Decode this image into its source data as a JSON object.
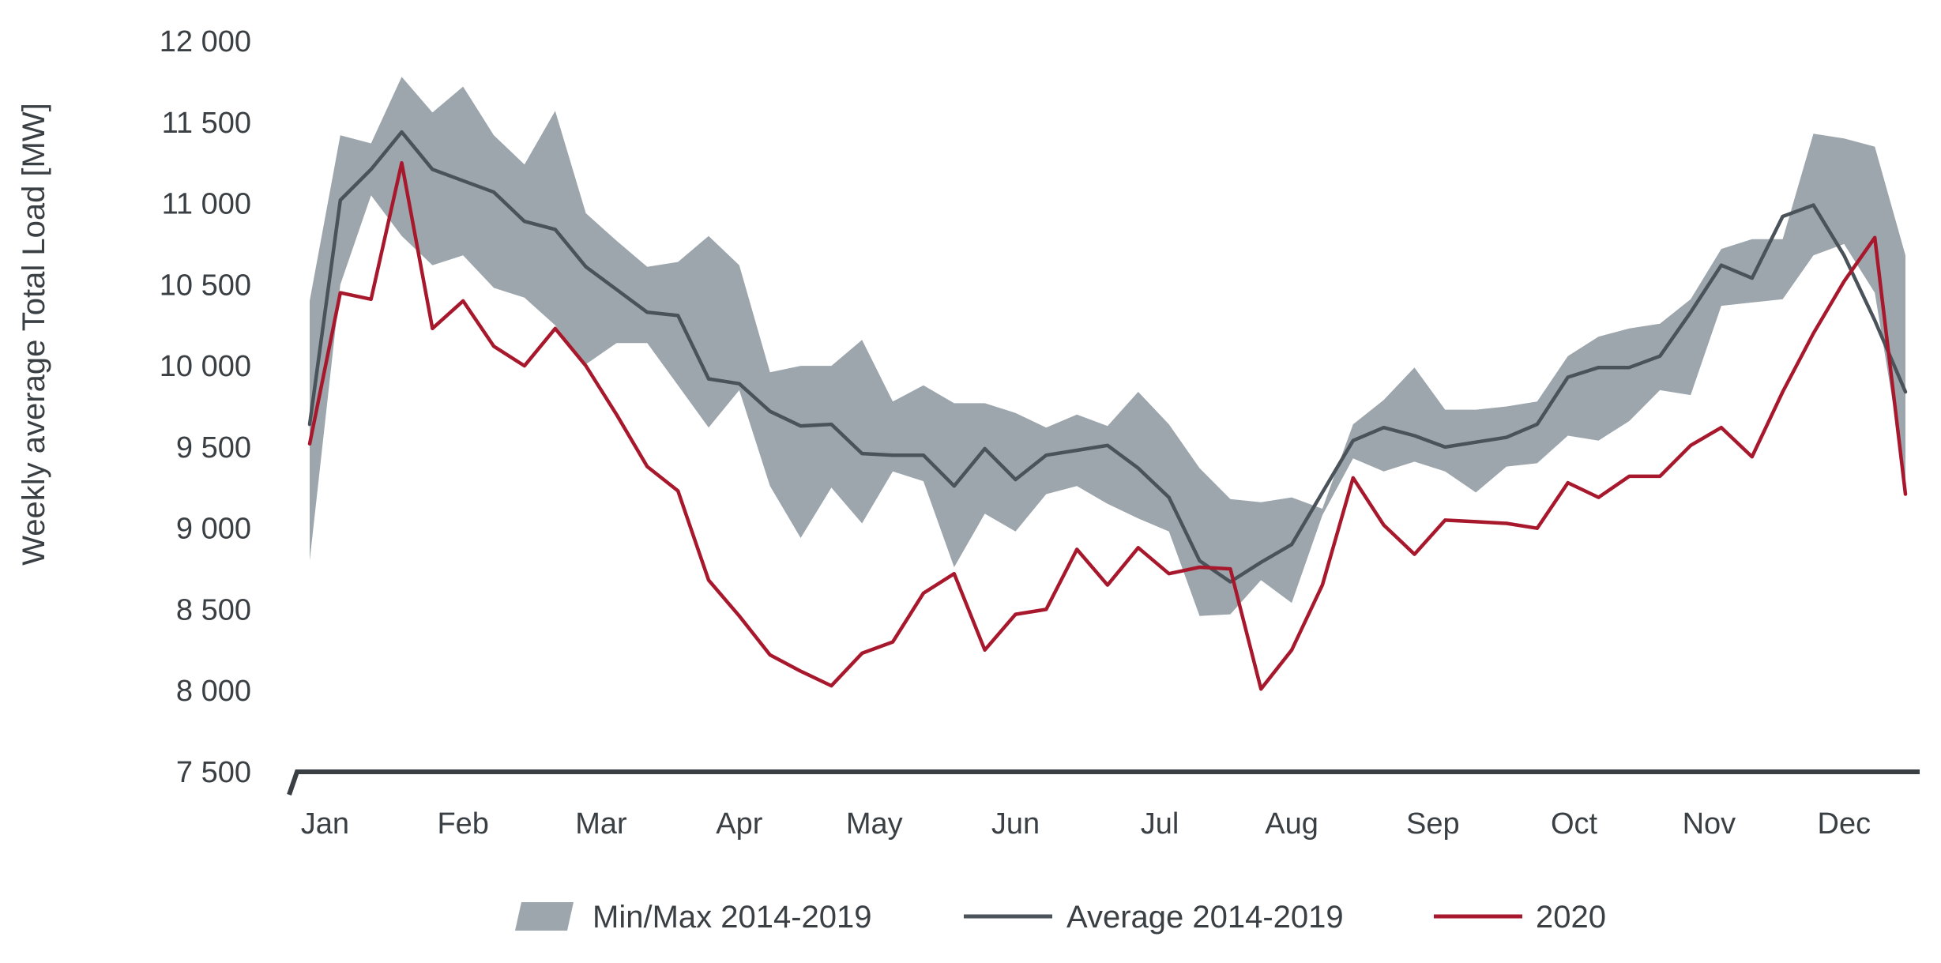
{
  "chart_data": {
    "type": "line",
    "title": "",
    "xlabel": "",
    "ylabel": "Weekly average Total Load [MW]",
    "ylim": [
      7500,
      12000
    ],
    "yticks": [
      7500,
      8000,
      8500,
      9000,
      9500,
      10000,
      10500,
      11000,
      11500,
      12000
    ],
    "ytick_labels": [
      "7 500",
      "8 000",
      "8 500",
      "9 000",
      "9 500",
      "10 000",
      "10 500",
      "11 000",
      "11 500",
      "12 000"
    ],
    "xlim": [
      1,
      53
    ],
    "month_labels": [
      "Jan",
      "Feb",
      "Mar",
      "Apr",
      "May",
      "Jun",
      "Jul",
      "Aug",
      "Sep",
      "Oct",
      "Nov",
      "Dec"
    ],
    "month_positions": [
      1.5,
      6,
      10.5,
      15,
      19.4,
      24,
      28.7,
      33,
      37.6,
      42.2,
      46.6,
      51
    ],
    "grid": false,
    "legend_position": "bottom-center",
    "band": {
      "name": "Min/Max 2014-2019",
      "color": "#9da6ad",
      "week": [
        1,
        2,
        3,
        4,
        5,
        6,
        7,
        8,
        9,
        10,
        11,
        12,
        13,
        14,
        15,
        16,
        17,
        18,
        19,
        20,
        21,
        22,
        23,
        24,
        25,
        26,
        27,
        28,
        29,
        30,
        31,
        32,
        33,
        34,
        35,
        36,
        37,
        38,
        39,
        40,
        41,
        42,
        43,
        44,
        45,
        46,
        47,
        48,
        49,
        50,
        51,
        52,
        53
      ],
      "min": [
        8800,
        10500,
        11050,
        10800,
        10620,
        10680,
        10480,
        10420,
        10250,
        10010,
        10140,
        10140,
        9880,
        9620,
        9850,
        9260,
        8940,
        9250,
        9030,
        9350,
        9290,
        8760,
        9090,
        8980,
        9210,
        9260,
        9150,
        9060,
        8980,
        8460,
        8470,
        8680,
        8540,
        9080,
        9430,
        9350,
        9410,
        9350,
        9220,
        9380,
        9400,
        9570,
        9540,
        9660,
        9850,
        9820,
        10370,
        10390,
        10410,
        10680,
        10750,
        10450,
        9300
      ],
      "max": [
        10400,
        11420,
        11370,
        11780,
        11560,
        11720,
        11420,
        11240,
        11570,
        10940,
        10770,
        10610,
        10640,
        10800,
        10620,
        9960,
        10000,
        10000,
        10160,
        9780,
        9880,
        9770,
        9770,
        9710,
        9620,
        9700,
        9630,
        9840,
        9640,
        9370,
        9180,
        9160,
        9190,
        9120,
        9640,
        9790,
        9990,
        9730,
        9730,
        9750,
        9780,
        10060,
        10180,
        10230,
        10260,
        10410,
        10720,
        10780,
        10780,
        11430,
        11400,
        11350,
        10680
      ]
    },
    "series": [
      {
        "name": "Average 2014-2019",
        "color": "#4a525a",
        "values": [
          9640,
          11020,
          11210,
          11440,
          11210,
          11140,
          11070,
          10890,
          10840,
          10610,
          10470,
          10330,
          10310,
          9920,
          9890,
          9720,
          9630,
          9640,
          9460,
          9450,
          9450,
          9260,
          9490,
          9300,
          9450,
          9480,
          9510,
          9370,
          9190,
          8800,
          8670,
          8790,
          8900,
          9220,
          9540,
          9620,
          9570,
          9500,
          9530,
          9560,
          9640,
          9930,
          9990,
          9990,
          10060,
          10330,
          10620,
          10540,
          10920,
          10990,
          10680,
          10280,
          9840
        ]
      },
      {
        "name": "2020",
        "color": "#a8182c",
        "values": [
          9520,
          10450,
          10410,
          11250,
          10230,
          10400,
          10120,
          10000,
          10230,
          10000,
          9700,
          9380,
          9230,
          8680,
          8460,
          8220,
          8120,
          8030,
          8230,
          8300,
          8600,
          8720,
          8250,
          8470,
          8500,
          8870,
          8650,
          8880,
          8720,
          8760,
          8750,
          8010,
          8250,
          8650,
          9310,
          9020,
          8840,
          9050,
          9040,
          9030,
          9000,
          9280,
          9190,
          9320,
          9320,
          9510,
          9620,
          9440,
          9840,
          10200,
          10520,
          10790,
          9210
        ]
      }
    ],
    "legend": [
      {
        "label": "Min/Max 2014-2019",
        "kind": "band",
        "color": "#9da6ad"
      },
      {
        "label": "Average 2014-2019",
        "kind": "line",
        "color": "#4a525a"
      },
      {
        "label": "2020",
        "kind": "line",
        "color": "#a8182c"
      }
    ]
  }
}
